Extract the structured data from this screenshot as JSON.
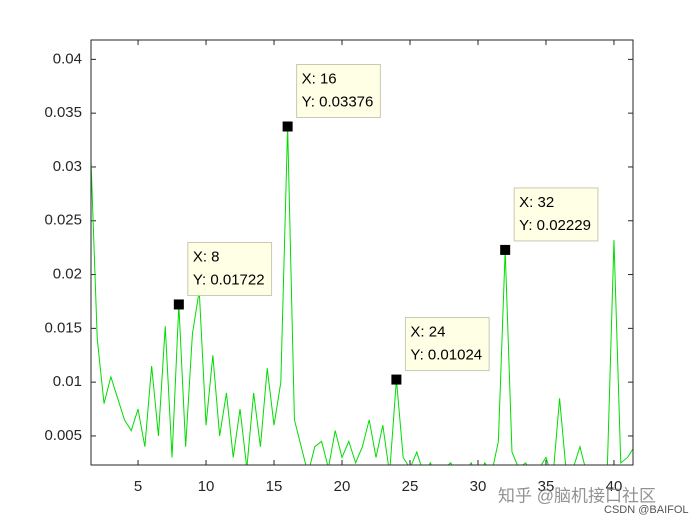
{
  "chart_data": {
    "type": "line",
    "x": [
      1.5,
      2,
      2.5,
      3,
      3.5,
      4,
      4.5,
      5,
      5.5,
      6,
      6.5,
      7,
      7.5,
      8,
      8.5,
      9,
      9.5,
      10,
      10.5,
      11,
      11.5,
      12,
      12.5,
      13,
      13.5,
      14,
      14.5,
      15,
      15.5,
      16,
      16.5,
      17,
      17.5,
      18,
      18.5,
      19,
      19.5,
      20,
      20.5,
      21,
      21.5,
      22,
      22.5,
      23,
      23.5,
      24,
      24.5,
      25,
      25.5,
      26,
      26.5,
      27,
      27.5,
      28,
      28.5,
      29,
      29.5,
      30,
      30.5,
      31,
      31.5,
      32,
      32.5,
      33,
      33.5,
      34,
      34.5,
      35,
      35.5,
      36,
      36.5,
      37,
      37.5,
      38,
      38.5,
      39,
      39.5,
      40,
      40.5,
      41,
      41.5
    ],
    "series": [
      {
        "color": "#00dd00",
        "values": [
          0.032,
          0.014,
          0.008,
          0.0105,
          0.0085,
          0.0065,
          0.0055,
          0.0075,
          0.004,
          0.0115,
          0.005,
          0.0152,
          0.003,
          0.01722,
          0.004,
          0.0145,
          0.0185,
          0.006,
          0.0125,
          0.005,
          0.009,
          0.003,
          0.0075,
          0.002,
          0.009,
          0.004,
          0.0113,
          0.006,
          0.01,
          0.03376,
          0.0065,
          0.004,
          0.0015,
          0.004,
          0.0045,
          0.002,
          0.0055,
          0.003,
          0.0045,
          0.0025,
          0.004,
          0.0065,
          0.003,
          0.006,
          0.0015,
          0.01024,
          0.003,
          0.002,
          0.0035,
          0.0015,
          0.0025,
          0.001,
          0.002,
          0.0025,
          0.001,
          0.0015,
          0.0025,
          0.001,
          0.0025,
          0.0015,
          0.0045,
          0.02229,
          0.0035,
          0.002,
          0.0025,
          0.0015,
          0.002,
          0.003,
          0.001,
          0.0085,
          0.0015,
          0.002,
          0.004,
          0.0015,
          0.002,
          0.001,
          0.0015,
          0.0232,
          0.0025,
          0.003,
          0.004
        ]
      }
    ],
    "xlim": [
      1.54,
      41.4
    ],
    "ylim": [
      0.0023,
      0.0418
    ],
    "xticks": [
      5,
      10,
      15,
      20,
      25,
      30,
      35,
      40
    ],
    "yticks": [
      0.005,
      0.01,
      0.015,
      0.02,
      0.025,
      0.03,
      0.035,
      0.04
    ],
    "annotations": [
      {
        "x": 8,
        "y": 0.01722,
        "text": [
          "X: 8",
          "Y: 0.01722"
        ]
      },
      {
        "x": 16,
        "y": 0.03376,
        "text": [
          "X: 16",
          "Y: 0.03376"
        ]
      },
      {
        "x": 24,
        "y": 0.01024,
        "text": [
          "X: 24",
          "Y: 0.01024"
        ]
      },
      {
        "x": 32,
        "y": 0.02229,
        "text": [
          "X: 32",
          "Y: 0.02229"
        ]
      }
    ]
  },
  "watermarks": [
    "知乎 @脑机接口社区",
    "CSDN @BAIFOL"
  ]
}
